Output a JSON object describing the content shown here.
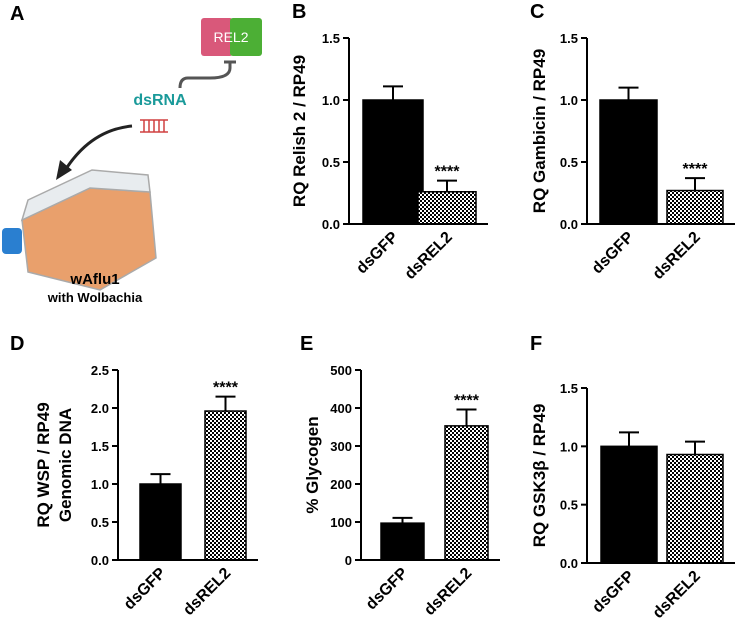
{
  "diagram": {
    "label": "A",
    "gene": "REL2",
    "agent": "dsRNA",
    "cell_line": "wAflu1",
    "cell_note": "with Wolbachia"
  },
  "chart_data": [
    {
      "type": "bar",
      "label": "B",
      "ylabel": [
        "RQ Relish 2 / RP49"
      ],
      "categories": [
        "dsGFP",
        "dsREL2"
      ],
      "values": [
        1.0,
        0.26
      ],
      "errors": [
        0.11,
        0.09
      ],
      "annotations": [
        null,
        "****"
      ],
      "patterns": [
        "solid",
        "checker"
      ],
      "color": "#000000",
      "ylim": [
        0,
        1.5
      ],
      "yticks": [
        {
          "value": 0,
          "label": "0.0"
        },
        0.5,
        {
          "value": 1,
          "label": "1.0"
        },
        1.5
      ]
    },
    {
      "type": "bar",
      "label": "C",
      "ylabel": [
        "RQ Gambicin / RP49"
      ],
      "categories": [
        "dsGFP",
        "dsREL2"
      ],
      "values": [
        1.0,
        0.27
      ],
      "errors": [
        0.1,
        0.1
      ],
      "annotations": [
        null,
        "****"
      ],
      "patterns": [
        "solid",
        "checker"
      ],
      "color": "#000000",
      "ylim": [
        0,
        1.5
      ],
      "yticks": [
        {
          "value": 0,
          "label": "0.0"
        },
        0.5,
        {
          "value": 1,
          "label": "1.0"
        },
        1.5
      ]
    },
    {
      "type": "bar",
      "label": "D",
      "ylabel": [
        "RQ WSP / RP49",
        "Genomic DNA"
      ],
      "categories": [
        "dsGFP",
        "dsREL2"
      ],
      "values": [
        1.0,
        1.96
      ],
      "errors": [
        0.13,
        0.19
      ],
      "annotations": [
        null,
        "****"
      ],
      "patterns": [
        "solid",
        "checker"
      ],
      "color": "#000000",
      "ylim": [
        0,
        2.5
      ],
      "yticks": [
        {
          "value": 0,
          "label": "0.0"
        },
        0.5,
        {
          "value": 1,
          "label": "1.0"
        },
        1.5,
        {
          "value": 2,
          "label": "2.0"
        },
        2.5
      ]
    },
    {
      "type": "bar",
      "label": "E",
      "ylabel": [
        "% Glycogen"
      ],
      "categories": [
        "dsGFP",
        "dsREL2"
      ],
      "values": [
        97,
        353
      ],
      "errors": [
        14,
        43
      ],
      "annotations": [
        null,
        "****"
      ],
      "patterns": [
        "solid",
        "checker"
      ],
      "color": "#000000",
      "ylim": [
        0,
        500
      ],
      "yticks": [
        0,
        100,
        200,
        300,
        400,
        500
      ]
    },
    {
      "type": "bar",
      "label": "F",
      "ylabel": [
        "RQ GSK3β / RP49"
      ],
      "categories": [
        "dsGFP",
        "dsREL2"
      ],
      "values": [
        1.0,
        0.93
      ],
      "errors": [
        0.12,
        0.11
      ],
      "annotations": [
        null,
        null
      ],
      "patterns": [
        "solid",
        "checker"
      ],
      "color": "#000000",
      "ylim": [
        0,
        1.5
      ],
      "yticks": [
        {
          "value": 0,
          "label": "0.0"
        },
        0.5,
        {
          "value": 1,
          "label": "1.0"
        },
        1.5
      ]
    }
  ]
}
